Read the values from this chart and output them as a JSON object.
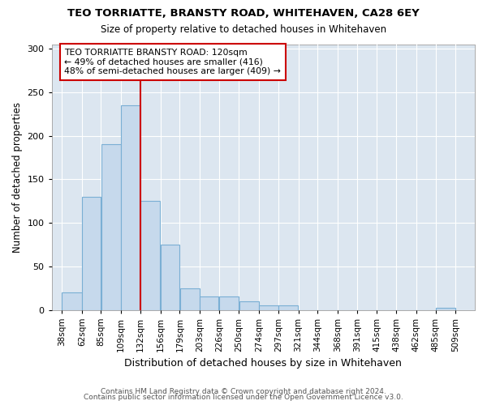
{
  "title": "TEO TORRIATTE, BRANSTY ROAD, WHITEHAVEN, CA28 6EY",
  "subtitle": "Size of property relative to detached houses in Whitehaven",
  "xlabel": "Distribution of detached houses by size in Whitehaven",
  "ylabel": "Number of detached properties",
  "footnote1": "Contains HM Land Registry data © Crown copyright and database right 2024.",
  "footnote2": "Contains public sector information licensed under the Open Government Licence v3.0.",
  "bar_left_edges": [
    38,
    62,
    85,
    109,
    132,
    156,
    179,
    203,
    226,
    250,
    274,
    297,
    321,
    344,
    368,
    391,
    415,
    438,
    462,
    485
  ],
  "bar_widths": [
    24,
    23,
    24,
    23,
    24,
    23,
    24,
    23,
    24,
    24,
    23,
    24,
    23,
    24,
    23,
    24,
    23,
    24,
    23,
    24
  ],
  "bar_heights": [
    20,
    130,
    190,
    235,
    125,
    75,
    25,
    15,
    15,
    10,
    5,
    5,
    0,
    0,
    0,
    0,
    0,
    0,
    0,
    2
  ],
  "bar_color": "#c6d9ec",
  "bar_edge_color": "#7aafd4",
  "highlight_x": 132,
  "highlight_color": "#cc0000",
  "annotation_title": "TEO TORRIATTE BRANSTY ROAD: 120sqm",
  "annotation_line1": "← 49% of detached houses are smaller (416)",
  "annotation_line2": "48% of semi-detached houses are larger (409) →",
  "ylim": [
    0,
    305
  ],
  "yticks": [
    0,
    50,
    100,
    150,
    200,
    250,
    300
  ],
  "xtick_labels": [
    "38sqm",
    "62sqm",
    "85sqm",
    "109sqm",
    "132sqm",
    "156sqm",
    "179sqm",
    "203sqm",
    "226sqm",
    "250sqm",
    "274sqm",
    "297sqm",
    "321sqm",
    "344sqm",
    "368sqm",
    "391sqm",
    "415sqm",
    "438sqm",
    "462sqm",
    "485sqm",
    "509sqm"
  ],
  "xtick_positions": [
    38,
    62,
    85,
    109,
    132,
    156,
    179,
    203,
    226,
    250,
    274,
    297,
    321,
    344,
    368,
    391,
    415,
    438,
    462,
    485,
    509
  ],
  "xlim_left": 26,
  "xlim_right": 532,
  "bg_color": "#ffffff",
  "plot_bg_color": "#dce6f0",
  "grid_color": "#ffffff"
}
